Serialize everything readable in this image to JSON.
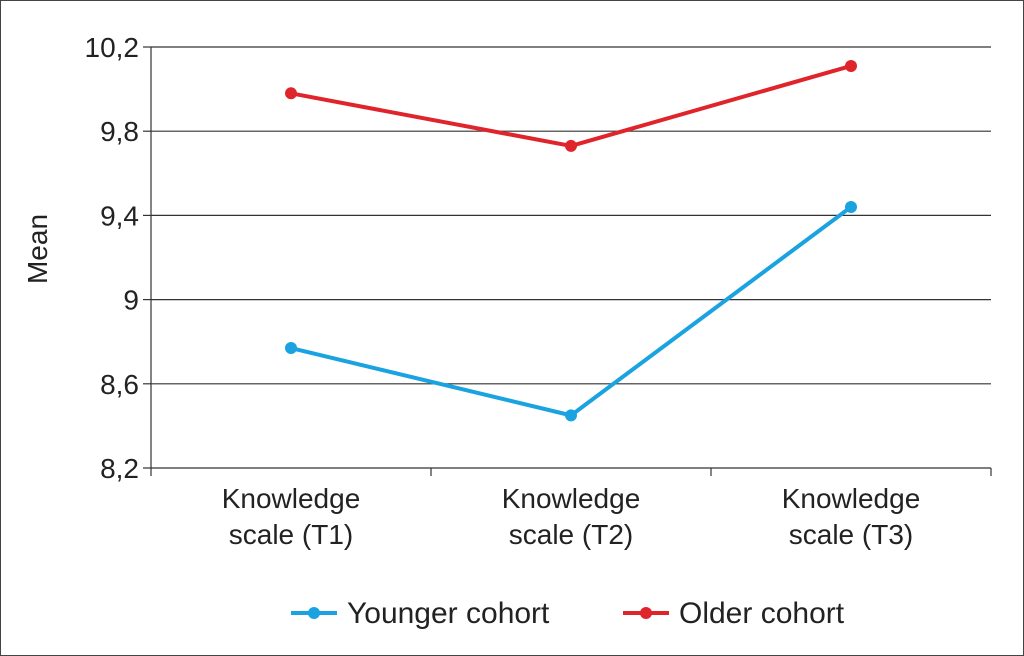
{
  "chart_data": {
    "type": "line",
    "title": "",
    "xlabel": "",
    "ylabel": "Mean",
    "categories": [
      "Knowledge scale (T1)",
      "Knowledge scale (T2)",
      "Knowledge scale (T3)"
    ],
    "category_lines": [
      [
        "Knowledge",
        "scale (T1)"
      ],
      [
        "Knowledge",
        "scale (T2)"
      ],
      [
        "Knowledge",
        "scale (T3)"
      ]
    ],
    "ylim": [
      8.2,
      10.2
    ],
    "yticks": [
      8.2,
      8.6,
      9.0,
      9.4,
      9.8,
      10.2
    ],
    "ytick_labels": [
      "8,2",
      "8,6",
      "9",
      "9,4",
      "9,8",
      "10,2"
    ],
    "grid": true,
    "legend_position": "bottom",
    "series": [
      {
        "name": "Younger cohort",
        "color": "#1aa3e0",
        "values": [
          8.77,
          8.45,
          9.44
        ]
      },
      {
        "name": "Older cohort",
        "color": "#e0242b",
        "values": [
          9.98,
          9.73,
          10.11
        ]
      }
    ]
  }
}
